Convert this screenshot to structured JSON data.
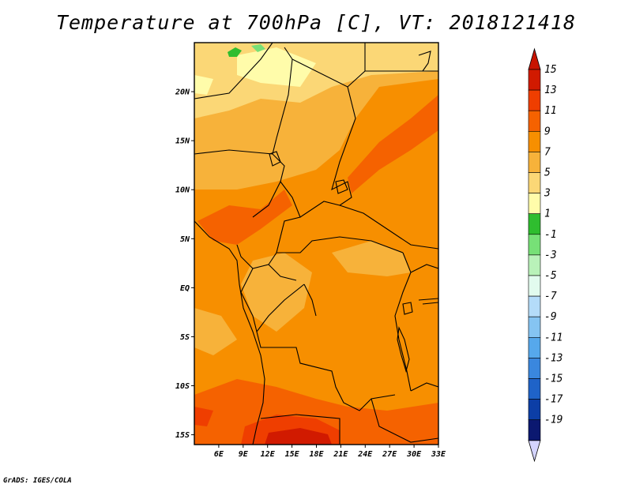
{
  "title": "Temperature at 700hPa [C], VT: 2018121418",
  "credit": "GrADS: IGES/COLA",
  "map": {
    "lon_range": [
      3,
      33
    ],
    "lat_range": [
      -16,
      25
    ],
    "lat_ticks": [
      {
        "value": 20,
        "label": "20N"
      },
      {
        "value": 15,
        "label": "15N"
      },
      {
        "value": 10,
        "label": "10N"
      },
      {
        "value": 5,
        "label": "5N"
      },
      {
        "value": 0,
        "label": "EQ"
      },
      {
        "value": -5,
        "label": "5S"
      },
      {
        "value": -10,
        "label": "10S"
      },
      {
        "value": -15,
        "label": "15S"
      }
    ],
    "lon_ticks": [
      {
        "value": 6,
        "label": "6E"
      },
      {
        "value": 9,
        "label": "9E"
      },
      {
        "value": 12,
        "label": "12E"
      },
      {
        "value": 15,
        "label": "15E"
      },
      {
        "value": 18,
        "label": "18E"
      },
      {
        "value": 21,
        "label": "21E"
      },
      {
        "value": 24,
        "label": "24E"
      },
      {
        "value": 27,
        "label": "27E"
      },
      {
        "value": 30,
        "label": "30E"
      },
      {
        "value": 33,
        "label": "33E"
      }
    ]
  },
  "colorbar": {
    "levels": [
      15,
      13,
      11,
      9,
      7,
      5,
      3,
      1,
      -1,
      -3,
      -5,
      -7,
      -9,
      -11,
      -13,
      -15,
      -17,
      -19
    ],
    "labels": [
      "15",
      "13",
      "11",
      "9",
      "7",
      "5",
      "3",
      "1",
      "-1",
      "-3",
      "-5",
      "-7",
      "-9",
      "-11",
      "-13",
      "-15",
      "-17",
      "-19"
    ],
    "colors": [
      "#d11a00",
      "#ef3e00",
      "#f56200",
      "#f78f00",
      "#f7b23a",
      "#fbd776",
      "#fffcaa",
      "#2fbd2f",
      "#77e077",
      "#b9f2b9",
      "#e2fbee",
      "#b4dcf9",
      "#85c4f2",
      "#56a8ec",
      "#3a87de",
      "#1f63c8",
      "#0c3ea6",
      "#0b1870"
    ],
    "top_arrow_color": "#c81400",
    "bottom_arrow_color": "#d4d4ff"
  }
}
